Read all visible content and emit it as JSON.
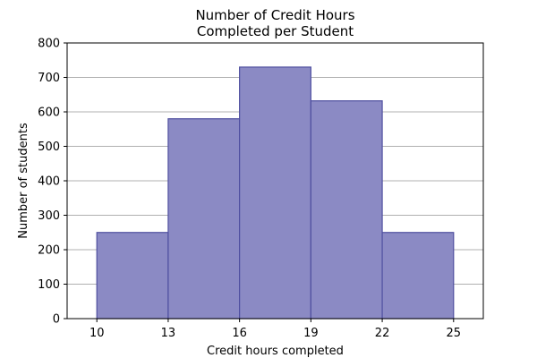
{
  "chart_data": {
    "type": "bar",
    "title_lines": [
      "Number of Credit Hours",
      "Completed per Student"
    ],
    "xlabel": "Credit hours completed",
    "ylabel": "Number of students",
    "bins": [
      {
        "start": 10,
        "end": 13,
        "value": 250
      },
      {
        "start": 13,
        "end": 16,
        "value": 580
      },
      {
        "start": 16,
        "end": 19,
        "value": 730
      },
      {
        "start": 19,
        "end": 22,
        "value": 632
      },
      {
        "start": 22,
        "end": 25,
        "value": 250
      }
    ],
    "xticks": [
      "10",
      "13",
      "16",
      "19",
      "22",
      "25"
    ],
    "yticks": [
      "0",
      "100",
      "200",
      "300",
      "400",
      "500",
      "600",
      "700",
      "800"
    ],
    "xlim": [
      8.75,
      26.25
    ],
    "ylim": [
      0,
      800
    ],
    "grid": "horizontal",
    "bar_fill": "#8B8AC4",
    "bar_edge": "#5050A0",
    "grid_color": "#b0b0b0"
  }
}
